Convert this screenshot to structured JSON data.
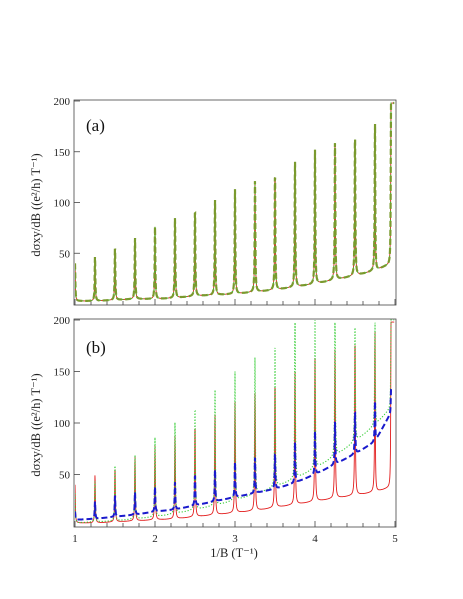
{
  "chart_data": [
    {
      "type": "line",
      "panel_label": "(a)",
      "ylabel": "dσxy/dB ((e²/h) T⁻¹)",
      "xlabel": "",
      "xlim": [
        1,
        5
      ],
      "ylim": [
        0,
        200
      ],
      "x_ticks": [
        "1",
        "2",
        "3",
        "4",
        "5"
      ],
      "x_tick_labels_shown": false,
      "y_ticks": [
        50,
        100,
        150,
        200
      ],
      "y_tick_labels": [
        "50",
        "100",
        "150",
        "200"
      ],
      "grid": false,
      "peak_positions": [
        1.0,
        1.25,
        1.5,
        1.75,
        2.0,
        2.25,
        2.5,
        2.75,
        3.0,
        3.25,
        3.5,
        3.75,
        4.0,
        4.25,
        4.5,
        4.75,
        4.95
      ],
      "series": [
        {
          "style": "solid",
          "color": "#e21b1b",
          "peaks": [
            40,
            47,
            57,
            66,
            76,
            86,
            95,
            104,
            113,
            123,
            132,
            142,
            152,
            161,
            171,
            181,
            198
          ],
          "valleys": [
            3,
            3,
            4,
            5,
            5,
            6,
            8,
            9,
            10,
            12,
            14,
            17,
            20,
            24,
            28,
            33,
            40
          ]
        },
        {
          "style": "dotted",
          "color": "#33cc33",
          "peaks": [
            40,
            47,
            57,
            66,
            76,
            86,
            95,
            104,
            113,
            123,
            132,
            142,
            152,
            161,
            171,
            181,
            198
          ],
          "valleys": [
            3,
            3,
            4,
            5,
            5,
            6,
            8,
            9,
            10,
            12,
            14,
            17,
            20,
            24,
            28,
            33,
            40
          ]
        },
        {
          "style": "dashed",
          "color": "#7a9a2e",
          "peaks": [
            40,
            47,
            57,
            66,
            76,
            86,
            95,
            104,
            113,
            123,
            132,
            142,
            152,
            161,
            171,
            181,
            198
          ],
          "valleys": [
            3,
            3,
            4,
            5,
            5,
            6,
            8,
            9,
            10,
            12,
            14,
            17,
            20,
            24,
            28,
            33,
            40
          ]
        }
      ]
    },
    {
      "type": "line",
      "panel_label": "(b)",
      "ylabel": "dσxy/dB ((e²/h) T⁻¹)",
      "xlabel": "1/B (T⁻¹)",
      "xlim": [
        1,
        5
      ],
      "ylim": [
        0,
        200
      ],
      "x_ticks": [
        1,
        2,
        3,
        4,
        5
      ],
      "x_tick_labels": [
        "1",
        "2",
        "3",
        "4",
        "5"
      ],
      "y_ticks": [
        50,
        100,
        150,
        200
      ],
      "y_tick_labels": [
        "50",
        "100",
        "150",
        "200"
      ],
      "grid": false,
      "peak_positions": [
        1.0,
        1.25,
        1.5,
        1.75,
        2.0,
        2.25,
        2.5,
        2.75,
        3.0,
        3.25,
        3.5,
        3.75,
        4.0,
        4.25,
        4.5,
        4.75,
        4.95
      ],
      "series": [
        {
          "style": "solid",
          "color": "#e21b1b",
          "peaks": [
            40,
            50,
            58,
            68,
            78,
            89,
            100,
            110,
            120,
            131,
            142,
            152,
            163,
            174,
            185,
            192,
            198
          ],
          "valleys": [
            3,
            3,
            4,
            5,
            6,
            7,
            9,
            11,
            13,
            15,
            18,
            21,
            24,
            27,
            30,
            33,
            38
          ]
        },
        {
          "style": "dotted",
          "color": "#33cc33",
          "peaks": [
            32,
            44,
            62,
            70,
            86,
            102,
            118,
            134,
            150,
            166,
            182,
            200,
            200,
            200,
            200,
            200,
            200
          ],
          "valleys": [
            3,
            4,
            5,
            7,
            9,
            12,
            16,
            20,
            25,
            31,
            38,
            46,
            56,
            68,
            82,
            98,
            115
          ]
        },
        {
          "style": "dashed",
          "color": "#1a1acc",
          "peaks": [
            14,
            24,
            30,
            33,
            38,
            43,
            50,
            55,
            62,
            67,
            72,
            82,
            92,
            102,
            112,
            122,
            132
          ],
          "valleys": [
            6,
            7,
            9,
            11,
            14,
            16,
            20,
            24,
            28,
            32,
            36,
            42,
            50,
            60,
            70,
            82,
            110
          ]
        }
      ]
    }
  ]
}
